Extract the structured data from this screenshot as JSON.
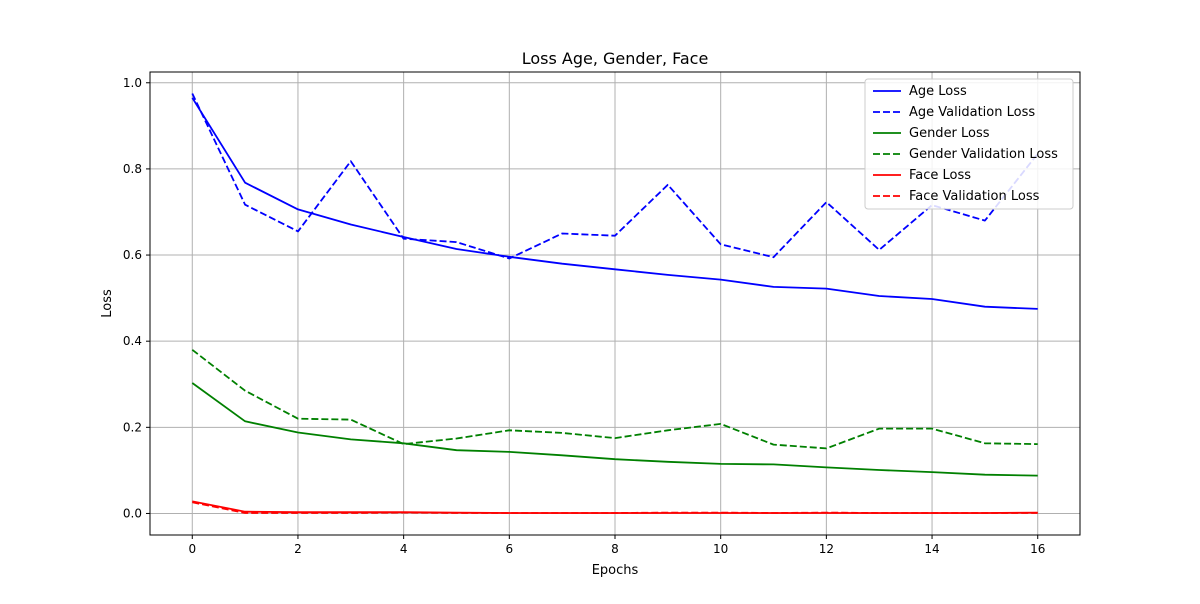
{
  "chart_data": {
    "type": "line",
    "title": "Loss Age, Gender, Face",
    "xlabel": "Epochs",
    "ylabel": "Loss",
    "xlim": [
      -0.8,
      16.8
    ],
    "ylim": [
      -0.05,
      1.025
    ],
    "xticks": [
      0,
      2,
      4,
      6,
      8,
      10,
      12,
      14,
      16
    ],
    "yticks": [
      0.0,
      0.2,
      0.4,
      0.6,
      0.8,
      1.0
    ],
    "xtick_labels": [
      "0",
      "2",
      "4",
      "6",
      "8",
      "10",
      "12",
      "14",
      "16"
    ],
    "ytick_labels": [
      "0.0",
      "0.2",
      "0.4",
      "0.6",
      "0.8",
      "1.0"
    ],
    "grid": true,
    "legend_position": "top-right",
    "x": [
      0,
      1,
      2,
      3,
      4,
      5,
      6,
      7,
      8,
      9,
      10,
      11,
      12,
      13,
      14,
      15,
      16
    ],
    "series": [
      {
        "name": "Age Loss",
        "color": "#0000ff",
        "style": "solid",
        "values": [
          0.965,
          0.768,
          0.706,
          0.671,
          0.642,
          0.614,
          0.596,
          0.58,
          0.567,
          0.554,
          0.543,
          0.526,
          0.522,
          0.505,
          0.498,
          0.48,
          0.475
        ]
      },
      {
        "name": "Age Validation Loss",
        "color": "#0000ff",
        "style": "dashed",
        "values": [
          0.975,
          0.717,
          0.655,
          0.818,
          0.638,
          0.63,
          0.592,
          0.65,
          0.645,
          0.763,
          0.625,
          0.595,
          0.723,
          0.612,
          0.716,
          0.68,
          0.835
        ]
      },
      {
        "name": "Gender Loss",
        "color": "#008000",
        "style": "solid",
        "values": [
          0.303,
          0.214,
          0.188,
          0.172,
          0.163,
          0.147,
          0.143,
          0.135,
          0.126,
          0.12,
          0.115,
          0.114,
          0.107,
          0.101,
          0.096,
          0.09,
          0.088
        ]
      },
      {
        "name": "Gender Validation Loss",
        "color": "#008000",
        "style": "dashed",
        "values": [
          0.38,
          0.285,
          0.22,
          0.218,
          0.161,
          0.174,
          0.193,
          0.187,
          0.175,
          0.193,
          0.208,
          0.16,
          0.151,
          0.197,
          0.197,
          0.163,
          0.161
        ]
      },
      {
        "name": "Face Loss",
        "color": "#ff0000",
        "style": "solid",
        "values": [
          0.028,
          0.004,
          0.003,
          0.003,
          0.003,
          0.002,
          0.001,
          0.001,
          0.001,
          0.001,
          0.001,
          0.001,
          0.001,
          0.001,
          0.001,
          0.001,
          0.002
        ]
      },
      {
        "name": "Face Validation Loss",
        "color": "#ff0000",
        "style": "dashed",
        "values": [
          0.026,
          0.001,
          0.001,
          0.001,
          0.002,
          0.001,
          0.001,
          0.001,
          0.001,
          0.002,
          0.002,
          0.001,
          0.002,
          0.001,
          0.001,
          0.001,
          0.001
        ]
      }
    ]
  }
}
